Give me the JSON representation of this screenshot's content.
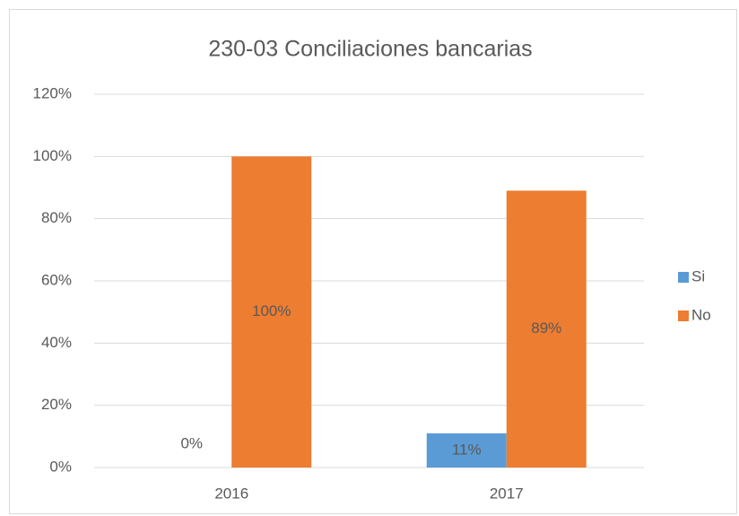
{
  "chart_data": {
    "type": "bar",
    "title": "230-03 Conciliaciones bancarias",
    "categories": [
      "2016",
      "2017"
    ],
    "series": [
      {
        "name": "Si",
        "color": "#5b9bd5",
        "values": [
          0,
          11
        ],
        "value_labels": [
          "0%",
          "11%"
        ]
      },
      {
        "name": "No",
        "color": "#ed7d31",
        "values": [
          100,
          89
        ],
        "value_labels": [
          "100%",
          "89%"
        ]
      }
    ],
    "ylim": [
      0,
      120
    ],
    "yticks": [
      {
        "value": 0,
        "label": "0%"
      },
      {
        "value": 20,
        "label": "20%"
      },
      {
        "value": 40,
        "label": "40%"
      },
      {
        "value": 60,
        "label": "60%"
      },
      {
        "value": 80,
        "label": "80%"
      },
      {
        "value": 100,
        "label": "100%"
      },
      {
        "value": 120,
        "label": "120%"
      }
    ],
    "grid": true,
    "legend": "right"
  }
}
